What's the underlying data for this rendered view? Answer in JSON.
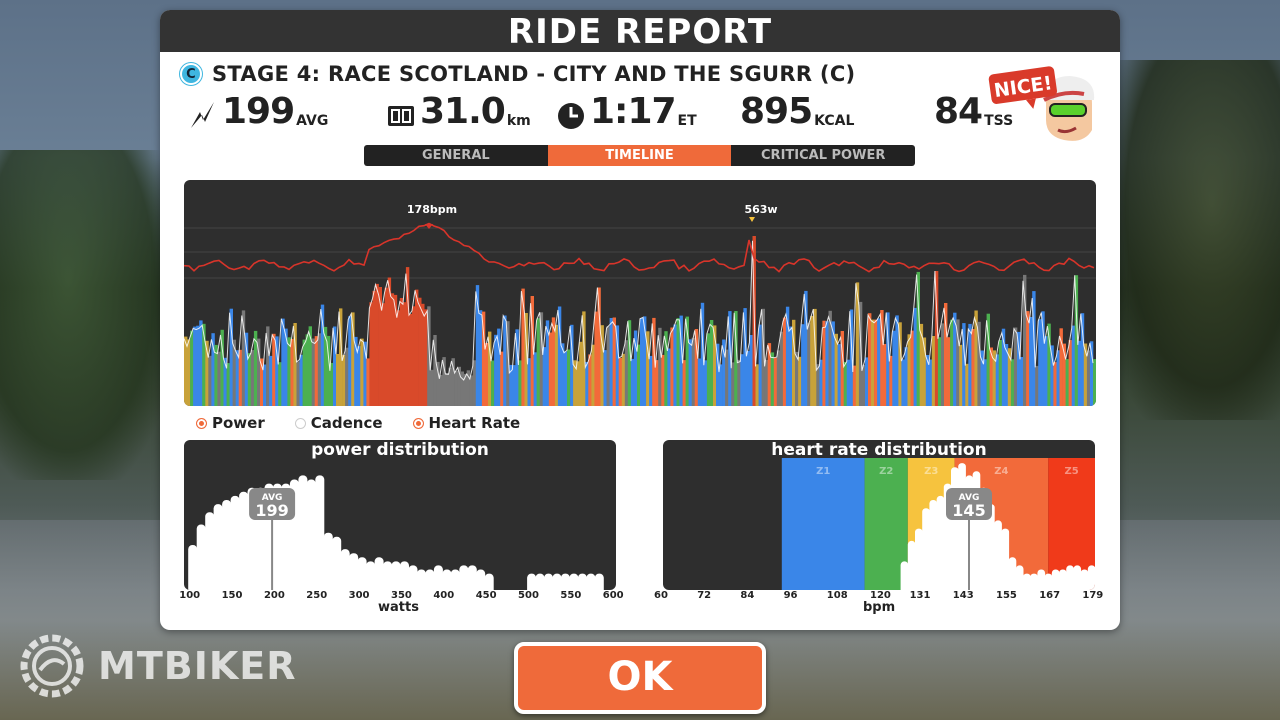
{
  "title": "RIDE REPORT",
  "stage": {
    "badge": "C",
    "name": "STAGE 4: RACE SCOTLAND - CITY AND THE SGURR (C)"
  },
  "stats": {
    "power": {
      "value": "199",
      "unit": "AVG",
      "icon": "power-bolt-icon"
    },
    "distance": {
      "value": "31.0",
      "unit": "km",
      "icon": "odometer-icon"
    },
    "time": {
      "value": "1:17",
      "unit": "ET",
      "icon": "clock-icon"
    },
    "calories": {
      "value": "895",
      "unit": "KCAL"
    },
    "tss": {
      "value": "84",
      "unit": "TSS"
    }
  },
  "badge": {
    "text": "NICE!"
  },
  "tabs": [
    {
      "label": "GENERAL",
      "active": false
    },
    {
      "label": "TIMELINE",
      "active": true
    },
    {
      "label": "CRITICAL POWER",
      "active": false
    }
  ],
  "timeline": {
    "hr_peak_label": "178bpm",
    "power_peak_label": "563w"
  },
  "legend": [
    {
      "label": "Power",
      "checked": true
    },
    {
      "label": "Cadence",
      "checked": false
    },
    {
      "label": "Heart Rate",
      "checked": true
    }
  ],
  "power_distribution": {
    "title": "power distribution",
    "avg_label": "AVG",
    "avg_value": "199",
    "xlabel": "watts",
    "ticks": [
      "100",
      "150",
      "200",
      "250",
      "300",
      "350",
      "400",
      "450",
      "500",
      "550",
      "600"
    ]
  },
  "hr_distribution": {
    "title": "heart rate distribution",
    "avg_label": "AVG",
    "avg_value": "145",
    "xlabel": "bpm",
    "ticks": [
      "60",
      "72",
      "84",
      "96",
      "108",
      "120",
      "131",
      "143",
      "155",
      "167",
      "179"
    ],
    "zones": [
      "Z1",
      "Z2",
      "Z3",
      "Z4",
      "Z5"
    ]
  },
  "ok_label": "OK",
  "watermark": "MTBIKER",
  "colors": {
    "accent": "#ef6a3a",
    "zone_blue": "#3a86e8",
    "zone_green": "#4cb050",
    "zone_yellow": "#f6c33e",
    "zone_orange": "#f26a3a",
    "zone_red": "#f03a1a",
    "hr_line": "#d8342a"
  },
  "chart_data": [
    {
      "type": "bar",
      "title": "power distribution",
      "xlabel": "watts",
      "x": [
        100,
        110,
        120,
        130,
        140,
        150,
        160,
        170,
        180,
        190,
        200,
        210,
        220,
        230,
        240,
        250,
        260,
        270,
        280,
        290,
        300,
        310,
        320,
        330,
        340,
        350,
        360,
        370,
        380,
        390,
        400,
        410,
        420,
        430,
        440,
        450,
        460,
        470,
        480,
        490,
        500,
        510,
        520,
        530,
        540,
        550,
        560,
        570,
        580,
        590
      ],
      "values": [
        0.22,
        0.32,
        0.38,
        0.42,
        0.44,
        0.46,
        0.48,
        0.5,
        0.5,
        0.52,
        0.52,
        0.52,
        0.54,
        0.56,
        0.54,
        0.56,
        0.28,
        0.26,
        0.2,
        0.18,
        0.16,
        0.14,
        0.16,
        0.14,
        0.14,
        0.14,
        0.12,
        0.1,
        0.1,
        0.12,
        0.1,
        0.1,
        0.12,
        0.12,
        0.1,
        0.08,
        0,
        0,
        0,
        0,
        0.08,
        0.08,
        0.08,
        0.08,
        0.08,
        0.08,
        0.08,
        0.08,
        0.08,
        0
      ],
      "avg": 199,
      "xlim": [
        95,
        605
      ]
    },
    {
      "type": "bar",
      "title": "heart rate distribution",
      "xlabel": "bpm",
      "x": [
        126,
        128,
        130,
        132,
        134,
        136,
        138,
        140,
        142,
        144,
        146,
        148,
        150,
        152,
        154,
        156,
        158,
        160,
        162,
        164,
        166,
        168,
        170,
        172,
        174,
        176,
        178
      ],
      "values": [
        0.14,
        0.24,
        0.3,
        0.4,
        0.44,
        0.46,
        0.52,
        0.6,
        0.62,
        0.56,
        0.58,
        0.5,
        0.42,
        0.34,
        0.3,
        0.16,
        0.12,
        0.08,
        0.08,
        0.1,
        0.08,
        0.1,
        0.1,
        0.12,
        0.12,
        0.1,
        0.12
      ],
      "avg": 145,
      "zones_bpm": [
        [
          93,
          116
        ],
        [
          116,
          128
        ],
        [
          128,
          141
        ],
        [
          141,
          167
        ],
        [
          167,
          180
        ]
      ],
      "xlim": [
        60,
        180
      ]
    }
  ]
}
